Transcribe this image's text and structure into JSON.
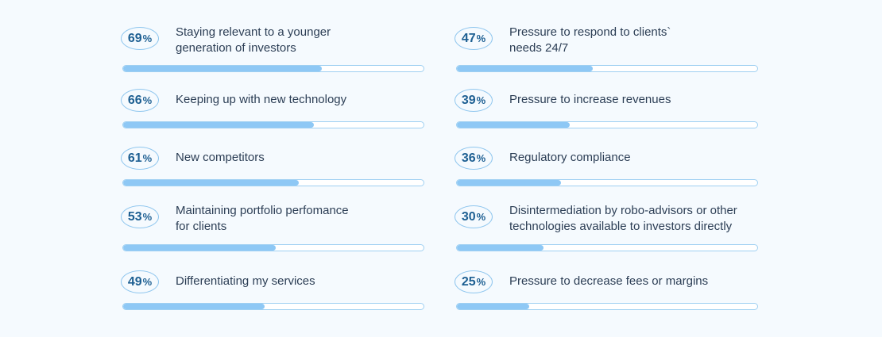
{
  "colors": {
    "background": "#f5fafe",
    "bar_fill": "#8ec8f5",
    "bar_border": "#9fd0f2",
    "badge_border": "#8fc6ee",
    "badge_text": "#1d5f92",
    "label_text": "#2c3e55"
  },
  "chart_data": {
    "type": "bar",
    "title": "",
    "xlabel": "",
    "ylabel": "",
    "ylim": [
      0,
      100
    ],
    "percent_suffix": "%",
    "items": [
      {
        "value": 69,
        "label": "Staying relevant to a younger generation of investors",
        "lines": [
          "Staying relevant to a younger",
          "generation of investors"
        ]
      },
      {
        "value": 66,
        "label": "Keeping up with new technology",
        "lines": [
          "Keeping up with new technology"
        ]
      },
      {
        "value": 61,
        "label": "New competitors",
        "lines": [
          "New competitors"
        ]
      },
      {
        "value": 53,
        "label": "Maintaining portfolio perfomance for clients",
        "lines": [
          "Maintaining portfolio perfomance",
          "for clients"
        ]
      },
      {
        "value": 49,
        "label": "Differentiating my services",
        "lines": [
          "Differentiating my services"
        ]
      },
      {
        "value": 47,
        "label": "Pressure to respond to clients` needs 24/7",
        "lines": [
          "Pressure to respond to clients`",
          "needs 24/7"
        ]
      },
      {
        "value": 39,
        "label": "Pressure to increase revenues",
        "lines": [
          "Pressure to increase revenues"
        ]
      },
      {
        "value": 36,
        "label": "Regulatory compliance",
        "lines": [
          "Regulatory compliance"
        ]
      },
      {
        "value": 30,
        "label": "Disintermediation by robo-advisors or other technologies available to investors directly",
        "lines": [
          "Disintermediation by robo-advisors or other",
          "technologies available to investors directly"
        ]
      },
      {
        "value": 25,
        "label": "Pressure to decrease fees or margins",
        "lines": [
          "Pressure to decrease fees or margins"
        ]
      }
    ]
  }
}
